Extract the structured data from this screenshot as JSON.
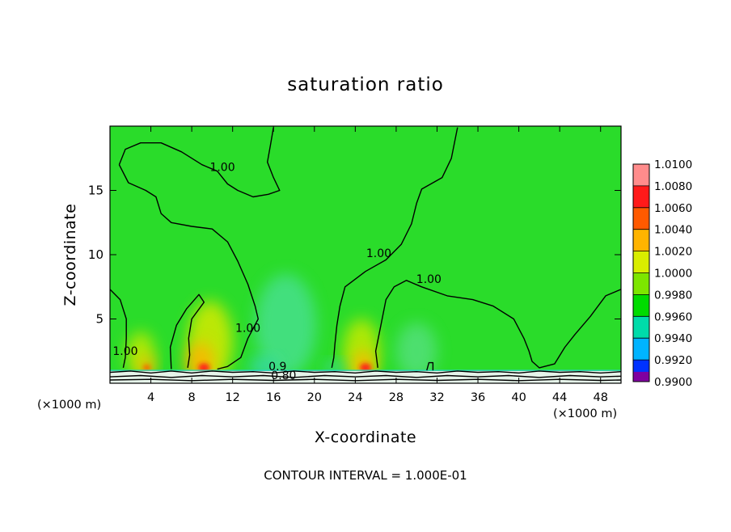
{
  "chart_data": {
    "type": "heatmap",
    "title": "saturation ratio",
    "xlabel": "X-coordinate",
    "ylabel": "Z-coordinate",
    "x_unit_left": "(×1000 m)",
    "x_unit_right": "(×1000 m)",
    "footer": "CONTOUR INTERVAL = 1.000E-01",
    "xlim": [
      0,
      50
    ],
    "ylim": [
      0,
      20
    ],
    "x_ticks": [
      4,
      8,
      12,
      16,
      20,
      24,
      28,
      32,
      36,
      40,
      44,
      48
    ],
    "y_ticks": [
      5,
      10,
      15
    ],
    "grid": false,
    "colorbar": {
      "placement": "right",
      "range": [
        0.99,
        1.01
      ],
      "levels": [
        {
          "label": "1.0100",
          "value": 1.01,
          "color": "#ff8c8c"
        },
        {
          "label": "1.0080",
          "value": 1.008,
          "color": "#ff1a1a"
        },
        {
          "label": "1.0060",
          "value": 1.006,
          "color": "#ff5a00"
        },
        {
          "label": "1.0040",
          "value": 1.004,
          "color": "#ffb400"
        },
        {
          "label": "1.0020",
          "value": 1.002,
          "color": "#d9ee00"
        },
        {
          "label": "1.0000",
          "value": 1.0,
          "color": "#7de600"
        },
        {
          "label": "0.9980",
          "value": 0.998,
          "color": "#00dc00"
        },
        {
          "label": "0.9960",
          "value": 0.996,
          "color": "#00dcaa"
        },
        {
          "label": "0.9940",
          "value": 0.994,
          "color": "#00b4ff"
        },
        {
          "label": "0.9920",
          "value": 0.992,
          "color": "#0032ff"
        },
        {
          "label": "0.9900",
          "value": 0.99,
          "color": "#2800b4"
        },
        {
          "label": "",
          "value": 0.988,
          "color": "#8000a0"
        }
      ]
    },
    "background_value": 0.999,
    "background_color": "#2adc2a",
    "contour_labels": [
      {
        "text": "1.00",
        "x": 11,
        "z": 16.5
      },
      {
        "text": "1.00",
        "x": 26.3,
        "z": 9.8
      },
      {
        "text": "1.00",
        "x": 31.2,
        "z": 7.8
      },
      {
        "text": "1.00",
        "x": 13.5,
        "z": 4.0
      },
      {
        "text": "1.00",
        "x": 1.5,
        "z": 2.2
      },
      {
        "text": "0.9",
        "x": 16.4,
        "z": 1.0
      },
      {
        "text": "0.80",
        "x": 17.0,
        "z": 0.3
      }
    ],
    "contours": [
      {
        "value": 1.0,
        "points": [
          [
            0.9,
            17.0
          ],
          [
            1.5,
            18.2
          ],
          [
            3.0,
            18.7
          ],
          [
            5.0,
            18.7
          ],
          [
            7.0,
            18.0
          ],
          [
            9.0,
            17.0
          ],
          [
            10.5,
            16.5
          ],
          [
            11.5,
            15.5
          ],
          [
            12.5,
            15.0
          ],
          [
            14.0,
            14.5
          ],
          [
            15.5,
            14.7
          ],
          [
            16.6,
            15.0
          ],
          [
            16.0,
            16.0
          ],
          [
            15.4,
            17.2
          ],
          [
            15.7,
            18.5
          ],
          [
            16.0,
            19.9
          ]
        ]
      },
      {
        "value": 1.0,
        "points": [
          [
            0.9,
            17.0
          ],
          [
            1.8,
            15.6
          ],
          [
            3.5,
            15.0
          ],
          [
            4.5,
            14.5
          ],
          [
            5.0,
            13.2
          ],
          [
            6.0,
            12.5
          ],
          [
            8.0,
            12.2
          ],
          [
            10.0,
            12.0
          ],
          [
            11.5,
            11.0
          ],
          [
            12.5,
            9.5
          ],
          [
            13.5,
            7.7
          ],
          [
            14.2,
            6.0
          ],
          [
            14.5,
            5.0
          ],
          [
            13.5,
            3.5
          ],
          [
            12.8,
            2.0
          ],
          [
            11.5,
            1.3
          ],
          [
            10.5,
            1.1
          ]
        ]
      },
      {
        "value": 1.0,
        "points": [
          [
            34.0,
            19.9
          ],
          [
            33.4,
            17.5
          ],
          [
            32.5,
            16.0
          ],
          [
            30.5,
            15.1
          ],
          [
            30.0,
            14.0
          ],
          [
            29.5,
            12.4
          ],
          [
            28.5,
            10.8
          ],
          [
            27.0,
            9.6
          ],
          [
            25.0,
            8.7
          ],
          [
            23.0,
            7.5
          ],
          [
            22.5,
            6.0
          ],
          [
            22.2,
            4.5
          ],
          [
            22.0,
            3.0
          ],
          [
            21.9,
            2.0
          ],
          [
            21.7,
            1.2
          ]
        ]
      },
      {
        "value": 1.0,
        "points": [
          [
            26.2,
            1.2
          ],
          [
            26.0,
            2.5
          ],
          [
            26.5,
            4.5
          ],
          [
            27.0,
            6.5
          ],
          [
            27.8,
            7.5
          ],
          [
            29.0,
            8.0
          ],
          [
            30.5,
            7.5
          ],
          [
            33.0,
            6.8
          ],
          [
            35.5,
            6.5
          ],
          [
            37.5,
            6.0
          ],
          [
            39.5,
            5.0
          ],
          [
            40.5,
            3.5
          ],
          [
            41.0,
            2.5
          ],
          [
            41.3,
            1.7
          ],
          [
            42.0,
            1.2
          ],
          [
            43.5,
            1.5
          ],
          [
            44.5,
            2.8
          ],
          [
            45.5,
            3.8
          ],
          [
            47.0,
            5.2
          ],
          [
            48.5,
            6.8
          ],
          [
            50.0,
            7.3
          ]
        ]
      },
      {
        "value": 1.0,
        "points": [
          [
            0.0,
            7.3
          ],
          [
            1.0,
            6.5
          ],
          [
            1.6,
            5.0
          ],
          [
            1.6,
            3.5
          ],
          [
            1.5,
            2.0
          ],
          [
            1.3,
            1.2
          ]
        ]
      },
      {
        "value": 1.0,
        "points": [
          [
            6.0,
            1.1
          ],
          [
            5.9,
            2.8
          ],
          [
            6.5,
            4.5
          ],
          [
            7.5,
            5.8
          ],
          [
            8.7,
            6.9
          ],
          [
            9.2,
            6.3
          ],
          [
            8.0,
            5.0
          ],
          [
            7.7,
            3.5
          ],
          [
            7.8,
            2.2
          ],
          [
            7.6,
            1.2
          ]
        ]
      },
      {
        "value": 1.0,
        "points": [
          [
            31.0,
            1.0
          ],
          [
            31.2,
            1.6
          ],
          [
            31.6,
            1.6
          ],
          [
            31.6,
            1.0
          ]
        ]
      },
      {
        "value": 0.9,
        "points": [
          [
            0.0,
            0.85
          ],
          [
            2.0,
            0.95
          ],
          [
            4.0,
            0.8
          ],
          [
            6.0,
            0.95
          ],
          [
            8.0,
            0.8
          ],
          [
            10.0,
            0.95
          ],
          [
            12.0,
            0.85
          ],
          [
            14.0,
            0.9
          ],
          [
            16.0,
            0.8
          ],
          [
            18.0,
            0.95
          ],
          [
            20.0,
            0.85
          ],
          [
            22.0,
            0.9
          ],
          [
            24.0,
            0.8
          ],
          [
            26.0,
            0.95
          ],
          [
            28.0,
            0.85
          ],
          [
            30.0,
            0.9
          ],
          [
            32.0,
            0.8
          ],
          [
            34.0,
            0.95
          ],
          [
            36.0,
            0.85
          ],
          [
            38.0,
            0.9
          ],
          [
            40.0,
            0.8
          ],
          [
            42.0,
            0.95
          ],
          [
            44.0,
            0.85
          ],
          [
            46.0,
            0.9
          ],
          [
            48.0,
            0.8
          ],
          [
            50.0,
            0.9
          ]
        ]
      },
      {
        "value": 0.8,
        "points": [
          [
            0.0,
            0.5
          ],
          [
            3.0,
            0.6
          ],
          [
            6.0,
            0.45
          ],
          [
            9.0,
            0.6
          ],
          [
            12.0,
            0.5
          ],
          [
            15.0,
            0.6
          ],
          [
            18.0,
            0.45
          ],
          [
            21.0,
            0.6
          ],
          [
            24.0,
            0.5
          ],
          [
            27.0,
            0.6
          ],
          [
            30.0,
            0.45
          ],
          [
            33.0,
            0.6
          ],
          [
            36.0,
            0.5
          ],
          [
            39.0,
            0.6
          ],
          [
            42.0,
            0.45
          ],
          [
            45.0,
            0.6
          ],
          [
            48.0,
            0.5
          ],
          [
            50.0,
            0.55
          ]
        ]
      },
      {
        "value": 0.7,
        "points": [
          [
            0.0,
            0.25
          ],
          [
            4.0,
            0.3
          ],
          [
            8.0,
            0.2
          ],
          [
            12.0,
            0.3
          ],
          [
            16.0,
            0.22
          ],
          [
            20.0,
            0.3
          ],
          [
            24.0,
            0.2
          ],
          [
            28.0,
            0.3
          ],
          [
            32.0,
            0.22
          ],
          [
            36.0,
            0.3
          ],
          [
            40.0,
            0.2
          ],
          [
            44.0,
            0.3
          ],
          [
            48.0,
            0.22
          ],
          [
            50.0,
            0.25
          ]
        ]
      }
    ],
    "field_features": [
      {
        "kind": "moist",
        "x": 3.0,
        "z": 2.2,
        "rx": 1.4,
        "rz": 1.8,
        "color": "#c6ea00"
      },
      {
        "kind": "moist",
        "x": 9.8,
        "z": 3.2,
        "rx": 2.2,
        "rz": 3.2,
        "color": "#d6ea00"
      },
      {
        "kind": "moist",
        "x": 24.6,
        "z": 2.5,
        "rx": 1.8,
        "rz": 2.5,
        "color": "#c6ea00"
      },
      {
        "kind": "moist",
        "x": 8.8,
        "z": 1.6,
        "rx": 1.4,
        "rz": 1.6,
        "color": "#ffb400"
      },
      {
        "kind": "moist",
        "x": 24.8,
        "z": 1.4,
        "rx": 1.1,
        "rz": 1.1,
        "color": "#ffb400"
      },
      {
        "kind": "moist",
        "x": 3.6,
        "z": 1.3,
        "rx": 0.8,
        "rz": 0.8,
        "color": "#ffb400"
      },
      {
        "kind": "peak",
        "x": 9.2,
        "z": 1.2,
        "rx": 0.55,
        "rz": 0.35,
        "color": "#ff1a1a"
      },
      {
        "kind": "peak",
        "x": 25.0,
        "z": 1.2,
        "rx": 0.55,
        "rz": 0.35,
        "color": "#ff1a1a"
      },
      {
        "kind": "peak",
        "x": 3.6,
        "z": 1.2,
        "rx": 0.35,
        "rz": 0.25,
        "color": "#ff5a00"
      },
      {
        "kind": "dry",
        "x": 17.2,
        "z": 4.5,
        "rx": 3.0,
        "rz": 4.0,
        "color": "#46e08c"
      },
      {
        "kind": "dry",
        "x": 30.0,
        "z": 2.5,
        "rx": 2.0,
        "rz": 2.2,
        "color": "#52e07a"
      },
      {
        "kind": "dry",
        "x": 15.0,
        "z": 1.3,
        "rx": 1.5,
        "rz": 0.7,
        "color": "#38d8b4"
      },
      {
        "kind": "dry",
        "x": 22.0,
        "z": 1.2,
        "rx": 1.0,
        "rz": 0.5,
        "color": "#40d8a0"
      }
    ]
  }
}
